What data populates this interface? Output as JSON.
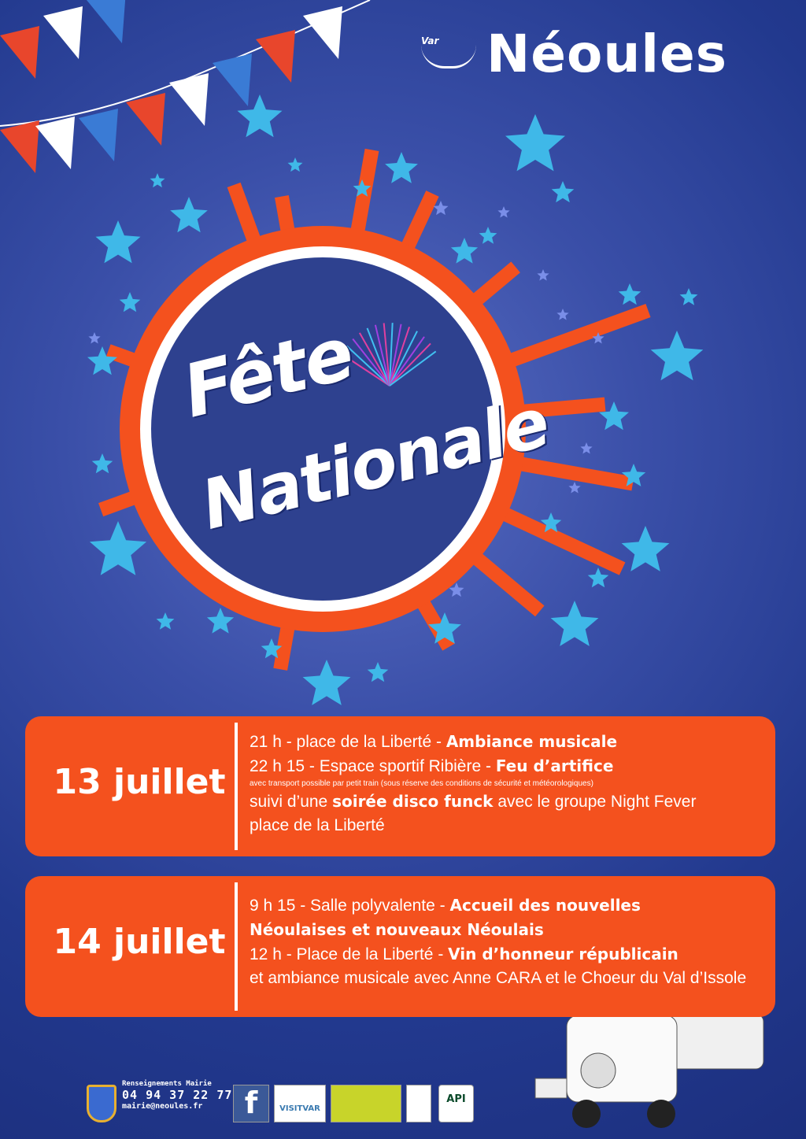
{
  "header": {
    "town": "Néoules",
    "logo_text": "Var"
  },
  "headline": {
    "line1": "Fête",
    "line2": "Nationale"
  },
  "events": [
    {
      "date": "13 juillet",
      "lines": [
        {
          "plain": "21 h - place de la Liberté - ",
          "bold": "Ambiance musicale"
        },
        {
          "plain": "22 h 15 - Espace sportif Ribière - ",
          "bold": "Feu d’artifice"
        },
        {
          "small": "avec transport possible par petit train (sous réserve des conditions de sécurité et météorologiques)"
        },
        {
          "plain": "suivi d’une ",
          "bold": "soirée disco funck",
          "after": " avec le groupe Night Fever"
        },
        {
          "plain": "place de la Liberté"
        }
      ]
    },
    {
      "date": "14 juillet",
      "lines": [
        {
          "plain": "9 h 15 - Salle polyvalente - ",
          "bold": "Accueil des nouvelles"
        },
        {
          "bold": "Néoulaises et nouveaux Néoulais"
        },
        {
          "plain": "12 h - Place de la Liberté - ",
          "bold": "Vin d’honneur républicain"
        },
        {
          "plain": "et ambiance musicale avec Anne CARA et le Choeur du Val d’Issole"
        }
      ]
    }
  ],
  "footer": {
    "label": "Renseignements Mairie",
    "phone": "04 94 37 22 77",
    "email": "mairie@neoules.fr",
    "partners": [
      "f",
      "VISITVAR",
      "",
      "",
      "API"
    ]
  },
  "colors": {
    "background": "#22398e",
    "orange": "#f4511e",
    "star": "#3fb8e8",
    "white": "#ffffff"
  }
}
